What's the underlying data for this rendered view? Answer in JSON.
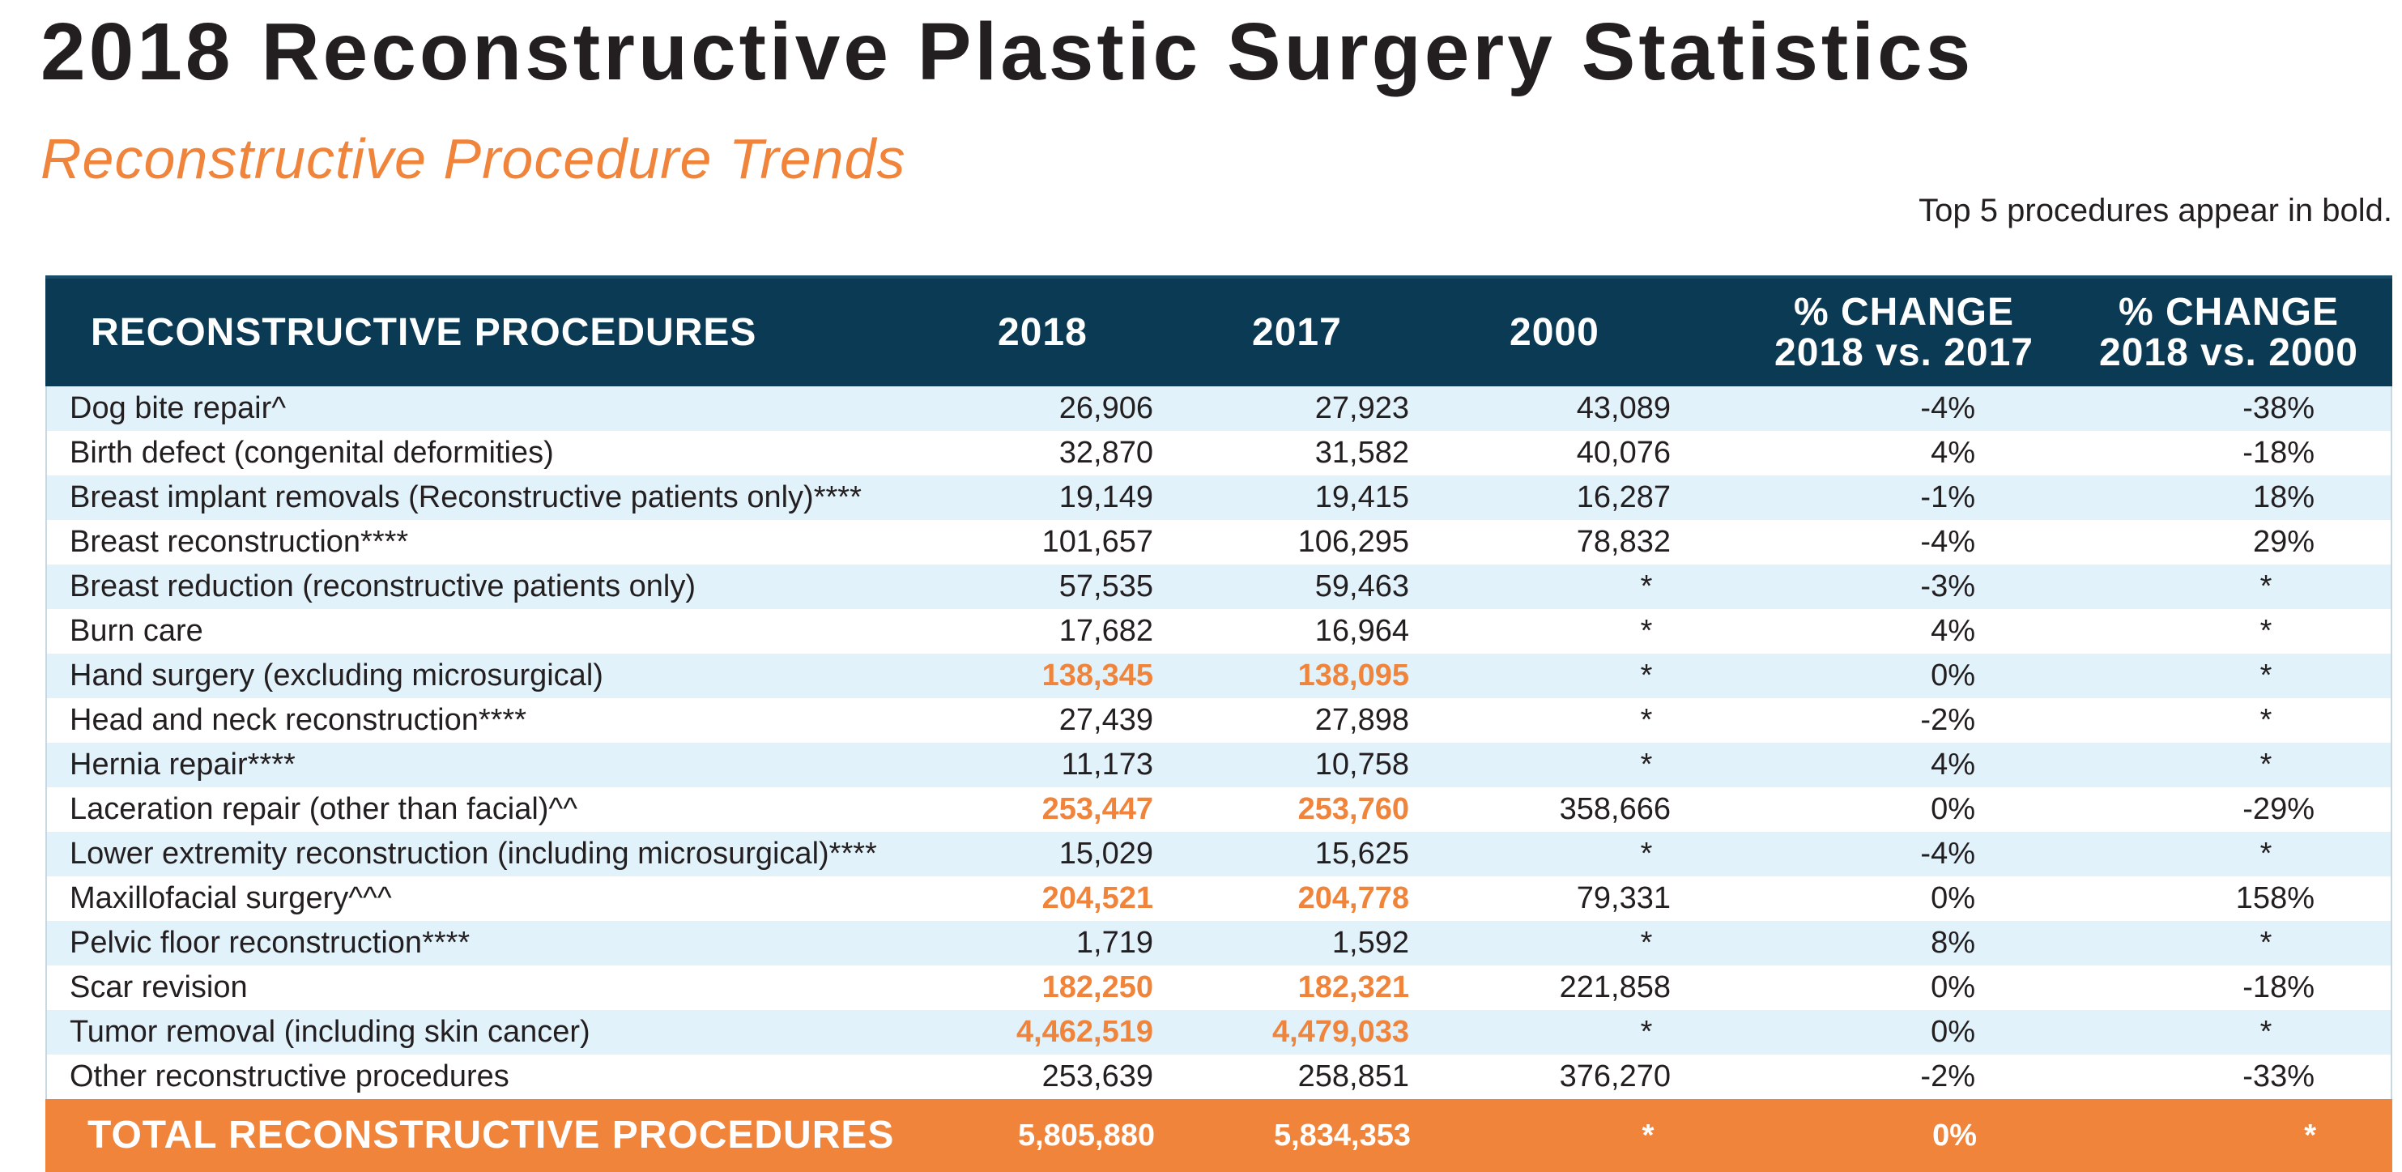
{
  "title_year": "2018",
  "title_text": "Reconstructive Plastic Surgery Statistics",
  "subtitle": "Reconstructive Procedure Trends",
  "note": "Top 5 procedures appear in bold.",
  "header": {
    "procedures": "RECONSTRUCTIVE PROCEDURES",
    "y2018": "2018",
    "y2017": "2017",
    "y2000": "2000",
    "chg1_line1": "% CHANGE",
    "chg1_line2": "2018 vs. 2017",
    "chg2_line1": "% CHANGE",
    "chg2_line2": "2018 vs. 2000"
  },
  "rows": [
    {
      "name": "Dog bite repair^",
      "v2018": "26,906",
      "v2017": "27,923",
      "v2000": "43,089",
      "chg1": "-4%",
      "chg2": "-38%"
    },
    {
      "name": "Birth defect (congenital deformities)",
      "v2018": "32,870",
      "v2017": "31,582",
      "v2000": "40,076",
      "chg1": "4%",
      "chg2": "-18%"
    },
    {
      "name": "Breast implant removals (Reconstructive patients only)****",
      "v2018": "19,149",
      "v2017": "19,415",
      "v2000": "16,287",
      "chg1": "-1%",
      "chg2": "18%"
    },
    {
      "name": "Breast reconstruction****",
      "v2018": "101,657",
      "v2017": "106,295",
      "v2000": "78,832",
      "chg1": "-4%",
      "chg2": "29%"
    },
    {
      "name": "Breast reduction (reconstructive patients only)",
      "v2018": "57,535",
      "v2017": "59,463",
      "v2000": "*",
      "chg1": "-3%",
      "chg2": "*"
    },
    {
      "name": "Burn care",
      "v2018": "17,682",
      "v2017": "16,964",
      "v2000": "*",
      "chg1": "4%",
      "chg2": "*"
    },
    {
      "name": "Hand surgery (excluding microsurgical)",
      "v2018": "138,345",
      "v2017": "138,095",
      "v2000": "*",
      "chg1": "0%",
      "chg2": "*"
    },
    {
      "name": "Head and neck reconstruction****",
      "v2018": "27,439",
      "v2017": "27,898",
      "v2000": "*",
      "chg1": "-2%",
      "chg2": "*"
    },
    {
      "name": "Hernia repair****",
      "v2018": "11,173",
      "v2017": "10,758",
      "v2000": "*",
      "chg1": "4%",
      "chg2": "*"
    },
    {
      "name": "Laceration repair (other than facial)^^",
      "v2018": "253,447",
      "v2017": "253,760",
      "v2000": "358,666",
      "chg1": "0%",
      "chg2": "-29%"
    },
    {
      "name": "Lower extremity reconstruction (including microsurgical)****",
      "v2018": "15,029",
      "v2017": "15,625",
      "v2000": "*",
      "chg1": "-4%",
      "chg2": "*"
    },
    {
      "name": "Maxillofacial surgery^^^",
      "v2018": "204,521",
      "v2017": "204,778",
      "v2000": "79,331",
      "chg1": "0%",
      "chg2": "158%"
    },
    {
      "name": "Pelvic floor reconstruction****",
      "v2018": "1,719",
      "v2017": "1,592",
      "v2000": "*",
      "chg1": "8%",
      "chg2": "*"
    },
    {
      "name": "Scar revision",
      "v2018": "182,250",
      "v2017": "182,321",
      "v2000": "221,858",
      "chg1": "0%",
      "chg2": "-18%"
    },
    {
      "name": "Tumor removal (including skin cancer)",
      "v2018": "4,462,519",
      "v2017": "4,479,033",
      "v2000": "*",
      "chg1": "0%",
      "chg2": "*"
    },
    {
      "name": "Other reconstructive procedures",
      "v2018": "253,639",
      "v2017": "258,851",
      "v2000": "376,270",
      "chg1": "-2%",
      "chg2": "-33%"
    }
  ],
  "total": {
    "name": "TOTAL RECONSTRUCTIVE PROCEDURES",
    "v2018": "5,805,880",
    "v2017": "5,834,353",
    "v2000": "*",
    "chg1": "0%",
    "chg2": "*"
  },
  "colors": {
    "accent": "#f0843a",
    "header": "#0b3a54",
    "stripe": "#e1f2fb"
  }
}
